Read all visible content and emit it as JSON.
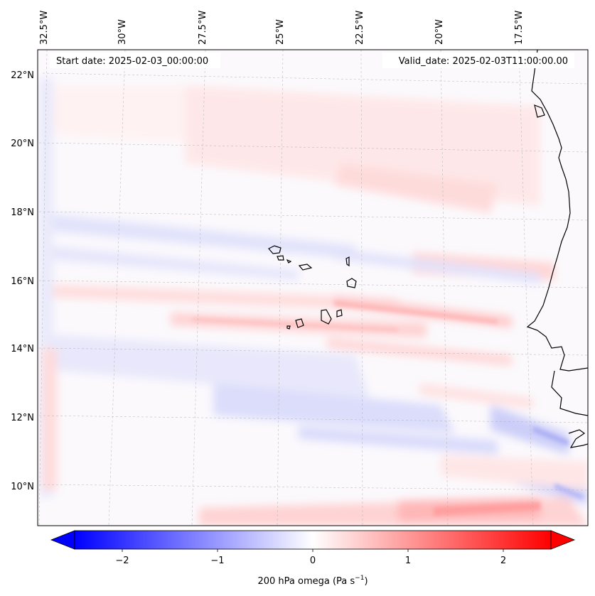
{
  "map": {
    "start_date": "Start date: 2025-02-03_00:00:00",
    "valid_date": "Valid_date: 2025-02-03T11:00:00.00",
    "lon_labels": [
      "32.5°W",
      "30°W",
      "27.5°W",
      "25°W",
      "22.5°W",
      "20°W",
      "17.5°W"
    ],
    "lat_labels": [
      "22°N",
      "20°N",
      "18°N",
      "16°N",
      "14°N",
      "12°N",
      "10°N"
    ],
    "colors": {
      "negative": "#0000ff",
      "neutral": "#ffffff",
      "positive": "#ff0000",
      "coast": "#000000",
      "grid": "#b0b0b0"
    }
  },
  "colorbar": {
    "label": "200 hPa omega (Pa s",
    "label_sup": "−1",
    "label_close": ")",
    "ticks": [
      "−2",
      "−1",
      "0",
      "1",
      "2"
    ],
    "min": -2.7,
    "max": 2.7
  }
}
